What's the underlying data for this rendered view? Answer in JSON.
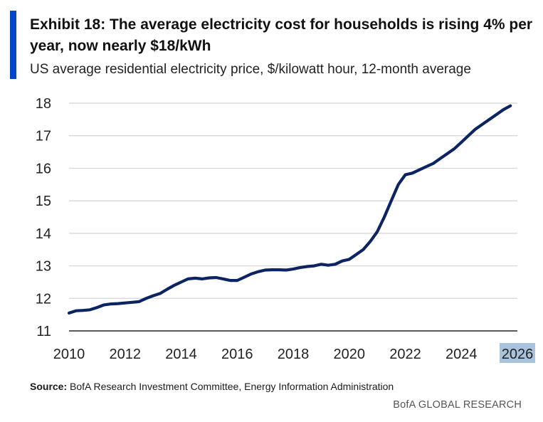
{
  "header": {
    "title": "Exhibit 18: The average electricity cost for households is rising 4% per year, now nearly $18/kWh",
    "subtitle": "US average residential electricity price, $/kilowatt hour, 12-month average"
  },
  "colors": {
    "accent": "#0046c8",
    "line": "#0c2461",
    "highlight": "#a9c3dc",
    "grid": "#d4d4d4"
  },
  "chart_data": {
    "type": "line",
    "title": "",
    "xlabel": "",
    "ylabel": "",
    "xlim": [
      2010,
      2026
    ],
    "ylim": [
      11,
      18
    ],
    "x_ticks": [
      "2010",
      "2012",
      "2014",
      "2016",
      "2018",
      "2020",
      "2022",
      "2024",
      "2026"
    ],
    "y_ticks": [
      "11",
      "12",
      "13",
      "14",
      "15",
      "16",
      "17",
      "18"
    ],
    "highlighted_tick": "2026",
    "grid": "horizontal",
    "series": [
      {
        "x": [
          2010.0,
          2010.25,
          2010.5,
          2010.75,
          2011.0,
          2011.25,
          2011.5,
          2011.75,
          2012.0,
          2012.25,
          2012.5,
          2012.75,
          2013.0,
          2013.25,
          2013.5,
          2013.75,
          2014.0,
          2014.25,
          2014.5,
          2014.75,
          2015.0,
          2015.25,
          2015.5,
          2015.75,
          2016.0,
          2016.25,
          2016.5,
          2016.75,
          2017.0,
          2017.25,
          2017.5,
          2017.75,
          2018.0,
          2018.25,
          2018.5,
          2018.75,
          2019.0,
          2019.25,
          2019.5,
          2019.75,
          2020.0,
          2020.25,
          2020.5,
          2020.75,
          2021.0,
          2021.25,
          2021.5,
          2021.75,
          2022.0,
          2022.25,
          2022.5,
          2022.75,
          2023.0,
          2023.25,
          2023.5,
          2023.75,
          2024.0,
          2024.25,
          2024.5,
          2024.75,
          2025.0,
          2025.25,
          2025.5,
          2025.75
        ],
        "y": [
          11.55,
          11.62,
          11.63,
          11.65,
          11.72,
          11.8,
          11.83,
          11.84,
          11.86,
          11.88,
          11.9,
          12.0,
          12.08,
          12.15,
          12.28,
          12.4,
          12.5,
          12.6,
          12.62,
          12.6,
          12.63,
          12.64,
          12.6,
          12.55,
          12.55,
          12.65,
          12.75,
          12.82,
          12.87,
          12.88,
          12.88,
          12.87,
          12.9,
          12.95,
          12.98,
          13.0,
          13.05,
          13.02,
          13.05,
          13.15,
          13.2,
          13.35,
          13.5,
          13.75,
          14.05,
          14.5,
          15.0,
          15.5,
          15.8,
          15.85,
          15.95,
          16.05,
          16.15,
          16.3,
          16.45,
          16.6,
          16.8,
          17.0,
          17.2,
          17.35,
          17.5,
          17.65,
          17.8,
          17.92
        ]
      }
    ]
  },
  "footer": {
    "source_label": "Source:",
    "source_text": "BofA Research Investment Committee, Energy Information Administration",
    "brand": "BofA GLOBAL RESEARCH"
  }
}
